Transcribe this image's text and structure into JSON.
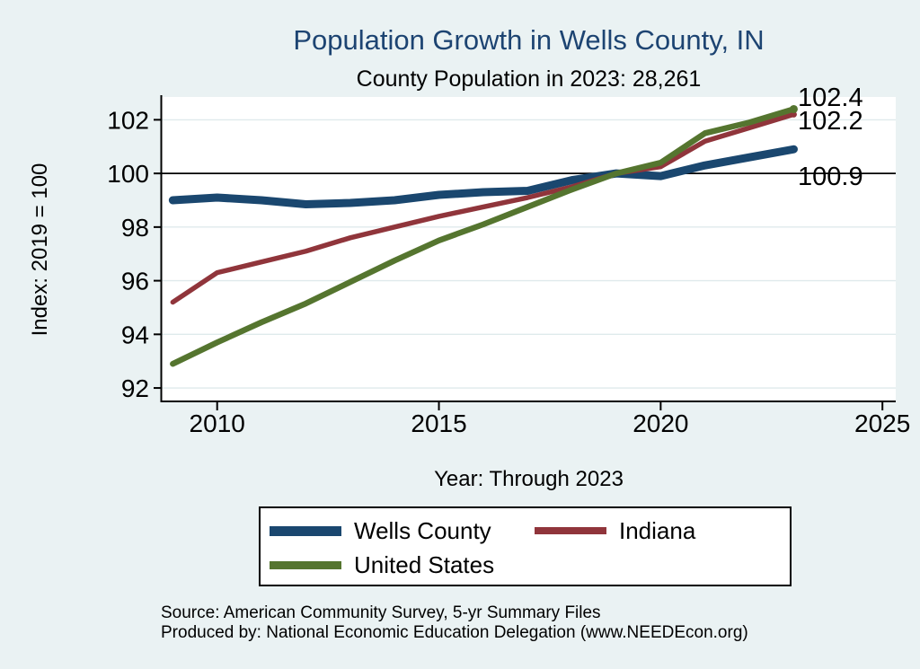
{
  "chart": {
    "title": "Population Growth in Wells County, IN",
    "subtitle": "County Population in 2023: 28,261",
    "x_axis_title": "Year: Through 2023",
    "y_axis_title": "Index: 2019 = 100",
    "source_line1": "Source: American Community Survey, 5-yr Summary Files",
    "source_line2": "Produced by: National Economic Education Delegation (www.NEEDEcon.org)"
  },
  "colors": {
    "background": "#eaf2f3",
    "plot_background": "#ffffff",
    "grid": "#dfeaec",
    "axis": "#000000",
    "title": "#1d4472",
    "reference_line": "#000000"
  },
  "chart_data": {
    "type": "line",
    "title": "Population Growth in Wells County, IN",
    "subtitle": "County Population in 2023: 28,261",
    "xlabel": "Year: Through 2023",
    "ylabel": "Index: 2019 = 100",
    "x": [
      2009,
      2010,
      2011,
      2012,
      2013,
      2014,
      2015,
      2016,
      2017,
      2018,
      2019,
      2020,
      2021,
      2022,
      2023
    ],
    "series": [
      {
        "name": "Wells  County",
        "color": "#1a476f",
        "width": 9,
        "end_dot": 0,
        "values": [
          99.0,
          99.1,
          99.0,
          98.85,
          98.9,
          99.0,
          99.2,
          99.3,
          99.35,
          99.75,
          100.0,
          99.9,
          100.3,
          100.6,
          100.9
        ]
      },
      {
        "name": "Indiana",
        "color": "#90353b",
        "width": 5.5,
        "end_dot": 3.5,
        "values": [
          95.2,
          96.3,
          96.7,
          97.1,
          97.6,
          98.0,
          98.4,
          98.75,
          99.1,
          99.5,
          100.0,
          100.25,
          101.2,
          101.7,
          102.2
        ]
      },
      {
        "name": "United States",
        "color": "#55752f",
        "width": 6.5,
        "end_dot": 4.5,
        "values": [
          92.9,
          93.7,
          94.45,
          95.15,
          95.95,
          96.75,
          97.5,
          98.1,
          98.75,
          99.4,
          100.0,
          100.4,
          101.5,
          101.9,
          102.4
        ]
      }
    ],
    "annotations": [
      {
        "series": "United States",
        "text": "102.4"
      },
      {
        "series": "Indiana",
        "text": "102.2"
      },
      {
        "series": "Wells  County",
        "text": "100.9"
      }
    ],
    "x_ticks": [
      2010,
      2015,
      2020,
      2025
    ],
    "y_ticks": [
      92,
      94,
      96,
      98,
      100,
      102
    ],
    "x_range": [
      2008.75,
      2025.3
    ],
    "y_range": [
      91.5,
      102.85
    ],
    "reference_line_y": 100,
    "grid": true,
    "legend_position": "bottom"
  }
}
